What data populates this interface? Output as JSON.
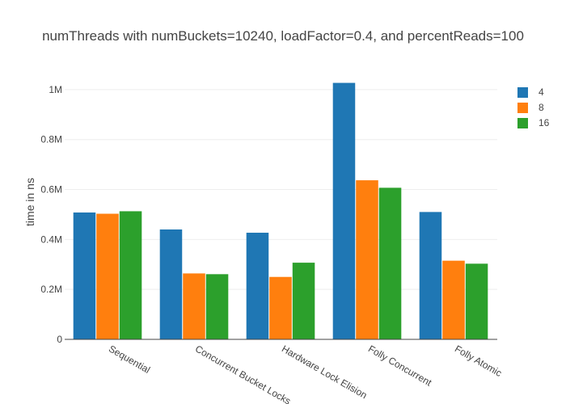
{
  "chart_data": {
    "type": "bar",
    "title": "numThreads with numBuckets=10240, loadFactor=0.4, and percentReads=100",
    "xlabel": "",
    "ylabel": "time in ns",
    "categories": [
      "Sequential",
      "Concurrent Bucket Locks",
      "Hardware Lock Elision",
      "Folly Concurrent",
      "Folly Atomic"
    ],
    "series": [
      {
        "name": "4",
        "color": "#1f77b4",
        "values": [
          508000,
          440000,
          427000,
          1027000,
          510000
        ]
      },
      {
        "name": "8",
        "color": "#ff7f0e",
        "values": [
          503000,
          264000,
          250000,
          637000,
          315000
        ]
      },
      {
        "name": "16",
        "color": "#2ca02c",
        "values": [
          513000,
          261000,
          307000,
          607000,
          303000
        ]
      }
    ],
    "ylim": [
      0,
      1100000
    ],
    "yticks": [
      0,
      200000,
      400000,
      600000,
      800000,
      1000000
    ],
    "ytick_labels": [
      "0",
      "0.2M",
      "0.4M",
      "0.6M",
      "0.8M",
      "1M"
    ],
    "grid": true,
    "legend_position": "top-right"
  }
}
